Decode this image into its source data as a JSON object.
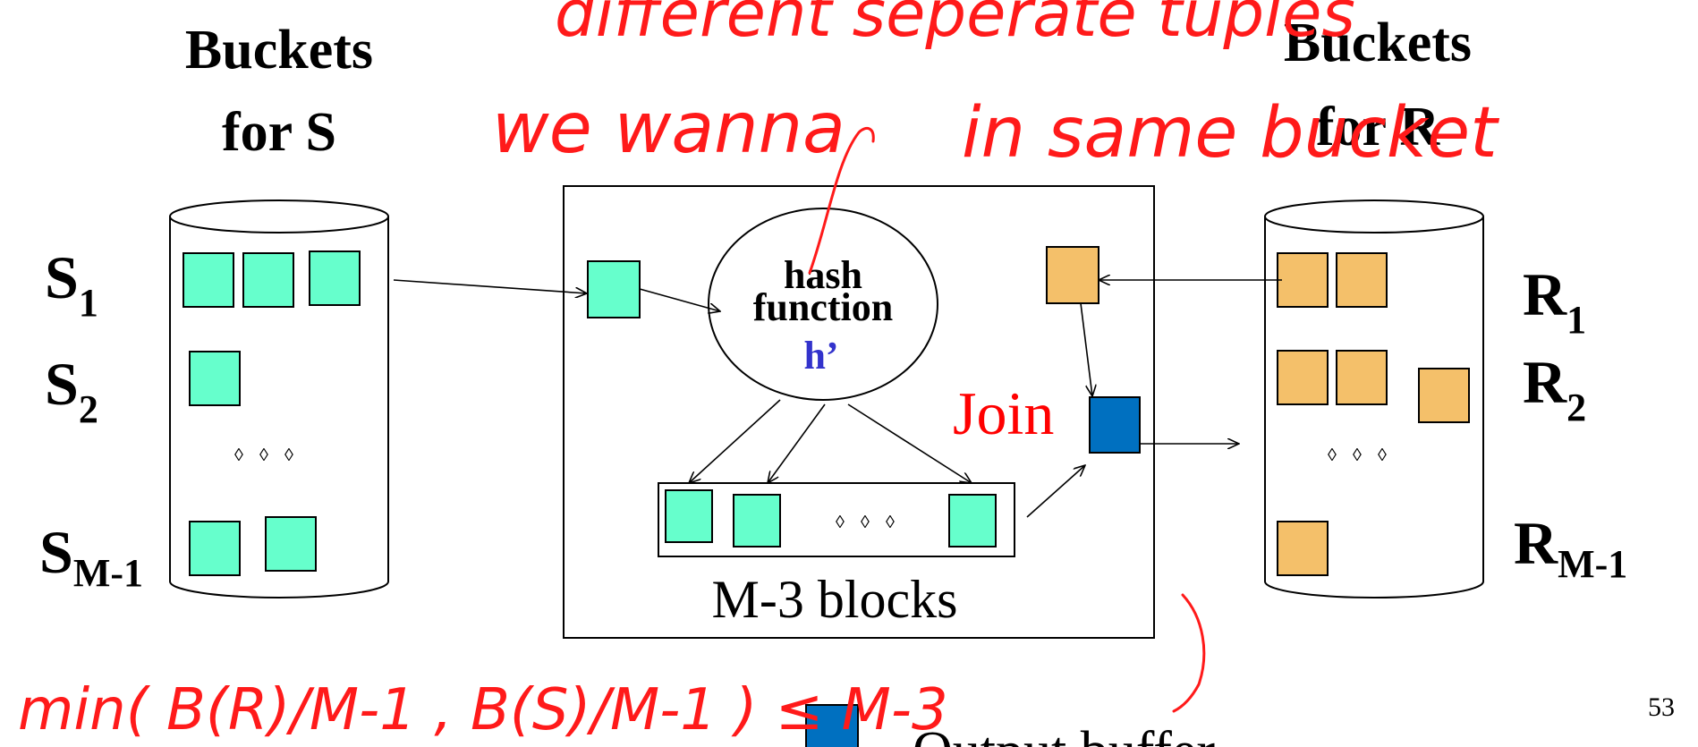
{
  "title_left": [
    "Buckets",
    "for S"
  ],
  "title_right": [
    "Buckets",
    "for R"
  ],
  "s_labels": [
    {
      "base": "S",
      "sub": "1"
    },
    {
      "base": "S",
      "sub": "2"
    },
    {
      "base": "S",
      "sub": "M-1"
    }
  ],
  "r_labels": [
    {
      "base": "R",
      "sub": "1"
    },
    {
      "base": "R",
      "sub": "2"
    },
    {
      "base": "R",
      "sub": "M-1"
    }
  ],
  "hash_label": [
    "hash",
    "function"
  ],
  "hash_symbol": "h’",
  "join_label": "Join",
  "blocks_label": "M-3 blocks",
  "output_label": "Output buffer",
  "page_number": "53",
  "handwriting": {
    "line1": "different    seperate     tuples",
    "line2": "we wanna",
    "line3": "in same bucket",
    "formula": "min( B(R)/M-1 , B(S)/M-1 ) ≤ M-3"
  },
  "colors": {
    "teal": "#66FFCC",
    "orange": "#F4C06A",
    "blue": "#0070C0",
    "hash_blue": "#3333CC",
    "join_red": "#FF0000",
    "ink_red": "#FF1A1A"
  }
}
